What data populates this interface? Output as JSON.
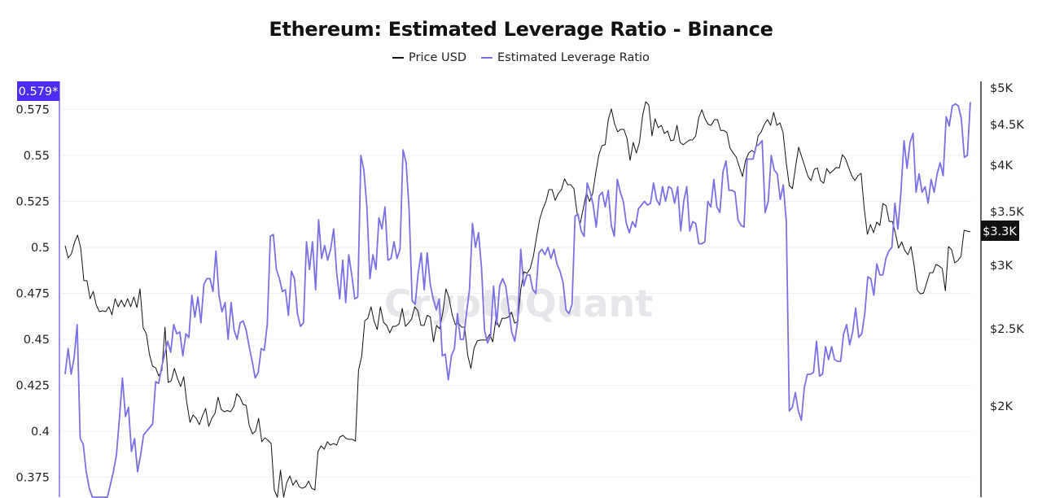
{
  "chart_data": {
    "type": "line",
    "title": "Ethereum: Estimated Leverage Ratio - Binance",
    "watermark": "CryptoQuant",
    "legend_position": "top-center",
    "grid": true,
    "colors": {
      "price": "#111111",
      "leverage": "#7b6fe6",
      "badge_leverage": "#4a2df0",
      "badge_price": "#111111"
    },
    "y_left": {
      "ylim": [
        0.364,
        0.585
      ],
      "ticks": [
        "0.575",
        "0.55",
        "0.525",
        "0.5",
        "0.475",
        "0.45",
        "0.425",
        "0.4",
        "0.375"
      ],
      "current_label": "0.579*"
    },
    "y_right": {
      "scale": "log",
      "ylim": [
        1500,
        5000
      ],
      "ticks": [
        "$5K",
        "$4.5K",
        "$4K",
        "$3.5K",
        "$3K",
        "$2.5K",
        "$2K"
      ],
      "tick_values": [
        5000,
        4500,
        4000,
        3500,
        3000,
        2500,
        2000
      ],
      "current_label": "$3.3K"
    },
    "series": [
      {
        "name": "Price USD",
        "axis": "right",
        "values": [
          3173,
          3064,
          3100,
          3203,
          3272,
          3151,
          2870,
          2870,
          2725,
          2783,
          2675,
          2625,
          2632,
          2625,
          2662,
          2601,
          2725,
          2662,
          2713,
          2662,
          2725,
          2662,
          2738,
          2656,
          2803,
          2505,
          2464,
          2324,
          2244,
          2234,
          2182,
          2218,
          2511,
          2141,
          2152,
          2229,
          2167,
          2116,
          2177,
          2019,
          1909,
          1950,
          1931,
          1896,
          1945,
          1987,
          1887,
          1931,
          1959,
          2053,
          1981,
          1968,
          1975,
          1968,
          1996,
          2072,
          2053,
          2010,
          2005,
          1891,
          1847,
          1861,
          1931,
          1805,
          1826,
          1813,
          1796,
          1572,
          1535,
          1663,
          1535,
          1604,
          1636,
          1593,
          1616,
          1586,
          1579,
          1586,
          1612,
          1579,
          1572,
          1755,
          1784,
          1767,
          1805,
          1788,
          1796,
          1788,
          1830,
          1839,
          1822,
          1818,
          1818,
          1809,
          2218,
          2309,
          2558,
          2576,
          2662,
          2552,
          2493,
          2662,
          2546,
          2523,
          2470,
          2517,
          2517,
          2535,
          2650,
          2517,
          2540,
          2570,
          2662,
          2632,
          2523,
          2523,
          2598,
          2585,
          2407,
          2523,
          2499,
          2621,
          2803,
          2731,
          2601,
          2529,
          2540,
          2511,
          2511,
          2313,
          2229,
          2362,
          2413,
          2419,
          2419,
          2419,
          2459,
          2407,
          2570,
          2511,
          2576,
          2576,
          2585,
          2621,
          2540,
          2552,
          2803,
          2944,
          2931,
          2972,
          3078,
          3249,
          3420,
          3526,
          3601,
          3730,
          3730,
          3617,
          3687,
          3730,
          3847,
          3783,
          3783,
          3740,
          3485,
          3381,
          3534,
          3696,
          3605,
          3687,
          3918,
          4125,
          4233,
          4244,
          4562,
          4704,
          4509,
          4405,
          4436,
          4436,
          4323,
          4058,
          4273,
          4145,
          4273,
          4616,
          4804,
          4759,
          4353,
          4573,
          4457,
          4488,
          4383,
          4416,
          4293,
          4303,
          4488,
          4273,
          4244,
          4273,
          4303,
          4303,
          4353,
          4589,
          4693,
          4573,
          4500,
          4488,
          4562,
          4562,
          4422,
          4422,
          4395,
          4203,
          4145,
          4096,
          3983,
          3873,
          4058,
          4145,
          4176,
          4145,
          4353,
          4405,
          4500,
          4562,
          4488,
          4659,
          4488,
          4520,
          4395,
          4030,
          3774,
          3740,
          3983,
          4213,
          4096,
          3983,
          3873,
          3828,
          3955,
          3970,
          3828,
          3800,
          3963,
          3909,
          3940,
          3974,
          3970,
          4125,
          4078,
          3974,
          3882,
          3828,
          3882,
          3909,
          3534,
          3279,
          3373,
          3295,
          3397,
          3365,
          3584,
          3560,
          3404,
          3404,
          3287,
          3151,
          3209,
          3130,
          3093,
          3166,
          2993,
          2792,
          2763,
          2770,
          2853,
          2937,
          2937,
          3007,
          2993,
          2972,
          2787,
          3166,
          3137,
          3021,
          3042,
          3078,
          3318,
          3310,
          3303
        ]
      },
      {
        "name": "Estimated Leverage Ratio",
        "axis": "left",
        "values": [
          0.431,
          0.445,
          0.431,
          0.44,
          0.458,
          0.396,
          0.393,
          0.378,
          0.369,
          0.36,
          0.352,
          0.348,
          0.35,
          0.355,
          0.36,
          0.371,
          0.378,
          0.387,
          0.407,
          0.429,
          0.408,
          0.413,
          0.389,
          0.396,
          0.378,
          0.387,
          0.398,
          0.4,
          0.402,
          0.404,
          0.427,
          0.426,
          0.435,
          0.442,
          0.449,
          0.443,
          0.458,
          0.453,
          0.454,
          0.441,
          0.453,
          0.451,
          0.474,
          0.462,
          0.473,
          0.459,
          0.48,
          0.483,
          0.483,
          0.476,
          0.498,
          0.474,
          0.465,
          0.47,
          0.45,
          0.47,
          0.455,
          0.45,
          0.459,
          0.46,
          0.455,
          0.446,
          0.438,
          0.429,
          0.432,
          0.445,
          0.444,
          0.458,
          0.506,
          0.507,
          0.488,
          0.483,
          0.476,
          0.477,
          0.463,
          0.487,
          0.483,
          0.464,
          0.457,
          0.459,
          0.503,
          0.488,
          0.503,
          0.477,
          0.515,
          0.494,
          0.501,
          0.493,
          0.499,
          0.51,
          0.486,
          0.472,
          0.493,
          0.47,
          0.496,
          0.485,
          0.472,
          0.473,
          0.55,
          0.542,
          0.522,
          0.483,
          0.496,
          0.488,
          0.516,
          0.51,
          0.522,
          0.493,
          0.494,
          0.503,
          0.494,
          0.499,
          0.553,
          0.546,
          0.52,
          0.471,
          0.469,
          0.486,
          0.497,
          0.477,
          0.497,
          0.48,
          0.472,
          0.466,
          0.472,
          0.441,
          0.442,
          0.428,
          0.441,
          0.445,
          0.464,
          0.45,
          0.45,
          0.464,
          0.477,
          0.513,
          0.5,
          0.508,
          0.489,
          0.455,
          0.448,
          0.452,
          0.479,
          0.458,
          0.479,
          0.483,
          0.479,
          0.467,
          0.454,
          0.449,
          0.46,
          0.499,
          0.479,
          0.485,
          0.485,
          0.477,
          0.475,
          0.497,
          0.499,
          0.496,
          0.5,
          0.494,
          0.499,
          0.491,
          0.487,
          0.481,
          0.466,
          0.464,
          0.469,
          0.517,
          0.518,
          0.509,
          0.506,
          0.535,
          0.53,
          0.523,
          0.511,
          0.528,
          0.53,
          0.522,
          0.531,
          0.512,
          0.506,
          0.537,
          0.53,
          0.525,
          0.513,
          0.508,
          0.514,
          0.511,
          0.521,
          0.523,
          0.525,
          0.523,
          0.524,
          0.535,
          0.526,
          0.523,
          0.533,
          0.525,
          0.533,
          0.532,
          0.524,
          0.533,
          0.509,
          0.525,
          0.533,
          0.509,
          0.514,
          0.513,
          0.502,
          0.502,
          0.503,
          0.525,
          0.522,
          0.537,
          0.522,
          0.519,
          0.541,
          0.547,
          0.531,
          0.531,
          0.53,
          0.515,
          0.512,
          0.511,
          0.548,
          0.548,
          0.548,
          0.555,
          0.556,
          0.558,
          0.519,
          0.525,
          0.55,
          0.542,
          0.54,
          0.526,
          0.534,
          0.514,
          0.411,
          0.413,
          0.421,
          0.411,
          0.406,
          0.424,
          0.431,
          0.431,
          0.432,
          0.449,
          0.43,
          0.431,
          0.446,
          0.439,
          0.446,
          0.439,
          0.438,
          0.438,
          0.453,
          0.458,
          0.447,
          0.454,
          0.467,
          0.451,
          0.453,
          0.464,
          0.484,
          0.483,
          0.474,
          0.491,
          0.485,
          0.485,
          0.494,
          0.498,
          0.5,
          0.524,
          0.51,
          0.53,
          0.558,
          0.543,
          0.557,
          0.562,
          0.53,
          0.54,
          0.53,
          0.533,
          0.524,
          0.537,
          0.53,
          0.54,
          0.546,
          0.539,
          0.571,
          0.566,
          0.577,
          0.578,
          0.577,
          0.57,
          0.549,
          0.55,
          0.579
        ]
      }
    ]
  }
}
